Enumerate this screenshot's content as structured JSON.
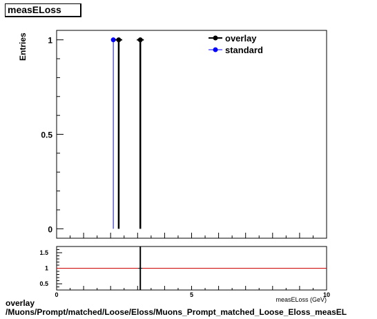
{
  "chart_data": [
    {
      "type": "scatter",
      "title": "measELoss",
      "ylabel": "Entries",
      "xlim": [
        0,
        10
      ],
      "ylim": [
        -0.05,
        1.05
      ],
      "yticks": [
        0,
        0.5,
        1
      ],
      "ytick_labels": [
        "0",
        "0.5",
        "1"
      ],
      "legend": "top-right",
      "series": [
        {
          "name": "overlay",
          "color": "#000000",
          "x": [
            2.3,
            3.1
          ],
          "y": [
            1,
            1
          ]
        },
        {
          "name": "standard",
          "color": "#0000ff",
          "x": [
            2.1
          ],
          "y": [
            1
          ]
        }
      ]
    },
    {
      "type": "line",
      "xlim": [
        0,
        10
      ],
      "ylim": [
        0.3,
        1.7
      ],
      "xticks": [
        0,
        5,
        10
      ],
      "xtick_labels": [
        "0",
        "5",
        "10"
      ],
      "yticks": [
        0.5,
        1,
        1.5
      ],
      "ytick_labels": [
        "0.5",
        "1",
        "1.5"
      ],
      "xlabel": "measELoss (GeV)",
      "reference_line": {
        "y": 1,
        "color": "#cc0000"
      },
      "series": [
        {
          "x": [
            3.1
          ],
          "y": [
            1
          ]
        }
      ]
    }
  ],
  "footer": {
    "line1": "overlay",
    "line2": "/Muons/Prompt/matched/Loose/Eloss/Muons_Prompt_matched_Loose_Eloss_measEL"
  }
}
